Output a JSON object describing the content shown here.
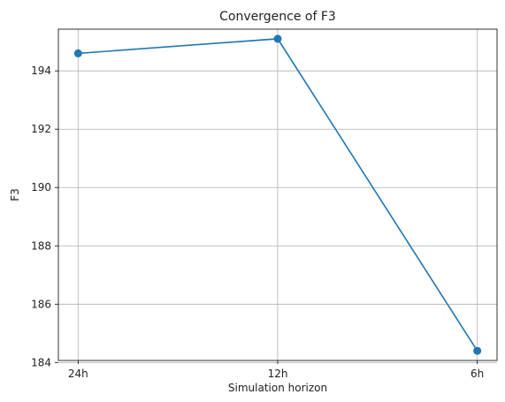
{
  "chart_data": {
    "type": "line",
    "title": "Convergence of F3",
    "xlabel": "Simulation horizon",
    "ylabel": "F3",
    "categories": [
      "24h",
      "12h",
      "6h"
    ],
    "series": [
      {
        "values": [
          194.6,
          195.1,
          184.4
        ],
        "color": "#1f77b4",
        "marker": "circle"
      }
    ],
    "ylim": [
      184.07,
      195.43
    ],
    "yticks": [
      184,
      186,
      188,
      190,
      192,
      194
    ],
    "grid": true,
    "grid_color": "#b0b0b0"
  }
}
